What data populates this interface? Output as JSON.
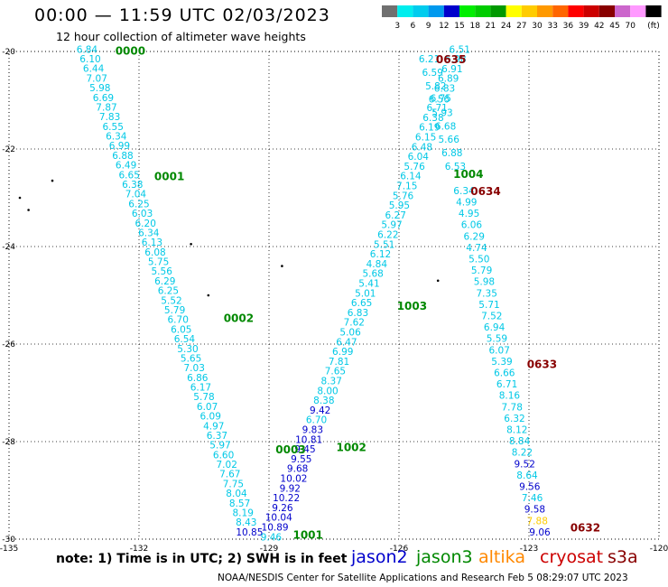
{
  "header": {
    "title": "00:00 — 11:59 UTC 02/03/2023",
    "subtitle": "12 hour collection of altimeter wave heights"
  },
  "footer": {
    "note": "note:  1) Time is in UTC;  2) SWH is in feet",
    "credit": "NOAA/NESDIS Center for Satellite Applications and Research    Feb  5 08:29:07 UTC 2023"
  },
  "legend": [
    {
      "name": "jason2",
      "color": "#0000cc"
    },
    {
      "name": "jason3",
      "color": "#008800"
    },
    {
      "name": "altika",
      "color": "#ff8800"
    },
    {
      "name": "cryosat",
      "color": "#cc0000"
    },
    {
      "name": "s3a",
      "color": "#880000"
    }
  ],
  "colorbar": {
    "colors": [
      "#707070",
      "#00eeee",
      "#00ccee",
      "#0099ee",
      "#0000cc",
      "#00ee00",
      "#00cc00",
      "#009900",
      "#ffff00",
      "#ffcc00",
      "#ff9900",
      "#ff6600",
      "#ff0000",
      "#cc0000",
      "#880000",
      "#cc66cc",
      "#ff99ff",
      "#000000"
    ],
    "labels": [
      "3",
      "6",
      "9",
      "12",
      "15",
      "18",
      "21",
      "24",
      "27",
      "30",
      "33",
      "36",
      "39",
      "42",
      "45",
      "70",
      "(ft)"
    ]
  },
  "chart_data": {
    "type": "scatter",
    "xlim": [
      -135,
      -120
    ],
    "ylim": [
      -30,
      -20
    ],
    "xticks": [
      -135,
      -132,
      -129,
      -126,
      -123,
      -120
    ],
    "yticks": [
      -20,
      -22,
      -24,
      -26,
      -28,
      -30
    ],
    "x_tick_labels": [
      "-135",
      "-132",
      "-129",
      "-126",
      "-123",
      "-120"
    ],
    "y_tick_labels": [
      "-20",
      "-22",
      "-24",
      "-26",
      "-28",
      "-30"
    ],
    "grid": true,
    "passes": [
      {
        "time": "0000",
        "label_lon": -132.2,
        "label_lat": -19.97,
        "color": "#008800"
      },
      {
        "time": "0001",
        "label_lon": -131.3,
        "label_lat": -22.55,
        "color": "#008800"
      },
      {
        "time": "0002",
        "label_lon": -129.7,
        "label_lat": -25.45,
        "color": "#008800"
      },
      {
        "time": "0003",
        "label_lon": -128.5,
        "label_lat": -28.15,
        "color": "#008800"
      },
      {
        "time": "1001",
        "label_lon": -128.1,
        "label_lat": -29.9,
        "color": "#008800"
      },
      {
        "time": "1002",
        "label_lon": -127.1,
        "label_lat": -28.1,
        "color": "#008800"
      },
      {
        "time": "1003",
        "label_lon": -125.7,
        "label_lat": -25.2,
        "color": "#008800"
      },
      {
        "time": "1004",
        "label_lon": -124.4,
        "label_lat": -22.5,
        "color": "#008800"
      },
      {
        "time": "0635",
        "label_lon": -124.8,
        "label_lat": -20.15,
        "color": "#880000"
      },
      {
        "time": "0634",
        "label_lon": -124.0,
        "label_lat": -22.85,
        "color": "#880000"
      },
      {
        "time": "0633",
        "label_lon": -122.7,
        "label_lat": -26.4,
        "color": "#880000"
      },
      {
        "time": "0632",
        "label_lon": -121.7,
        "label_lat": -29.75,
        "color": "#880000"
      }
    ],
    "tracks": [
      {
        "name": "jason3 descending",
        "lat_start": -19.95,
        "lat_end": -29.85,
        "lon_start": -133.2,
        "lon_end": -129.45,
        "values": [
          "6.84",
          "6.10",
          "6.44",
          "7.07",
          "5.98",
          "6.69",
          "7.87",
          "7.83",
          "6.55",
          "6.34",
          "6.99",
          "6.88",
          "6.49",
          "6.65",
          "6.38",
          "7.04",
          "6.25",
          "6.03",
          "6.20",
          "6.34",
          "6.13",
          "6.08",
          "5.75",
          "5.56",
          "6.29",
          "6.25",
          "5.52",
          "5.79",
          "6.70",
          "6.05",
          "6.54",
          "5.30",
          "5.65",
          "7.03",
          "6.86",
          "6.17",
          "5.78",
          "6.07",
          "6.09",
          "4.97",
          "6.37",
          "5.97",
          "6.60",
          "7.02",
          "7.67",
          "7.75",
          "8.04",
          "8.57",
          "8.19",
          "8.43",
          "10.85"
        ],
        "colors": [
          "c",
          "c",
          "c",
          "c",
          "c",
          "c",
          "c",
          "c",
          "c",
          "c",
          "c",
          "c",
          "c",
          "c",
          "c",
          "c",
          "c",
          "c",
          "c",
          "c",
          "c",
          "c",
          "c",
          "c",
          "c",
          "c",
          "c",
          "c",
          "c",
          "c",
          "c",
          "c",
          "c",
          "c",
          "c",
          "c",
          "c",
          "c",
          "c",
          "c",
          "c",
          "c",
          "c",
          "c",
          "c",
          "c",
          "c",
          "c",
          "c",
          "c",
          "b"
        ]
      },
      {
        "name": "jason3 ascending",
        "lat_start": -29.95,
        "lat_end": -19.95,
        "lon_start": -128.95,
        "lon_end": -124.6,
        "values": [
          "9.46",
          "10.89",
          "10.04",
          "9.26",
          "10.22",
          "9.92",
          "10.02",
          "9.68",
          "9.55",
          "9.45",
          "10.81",
          "9.83",
          "6.70",
          "9.42",
          "8.38",
          "8.00",
          "8.37",
          "7.65",
          "7.81",
          "6.99",
          "6.47",
          "5.06",
          "7.62",
          "6.83",
          "6.65",
          "5.01",
          "5.41",
          "5.68",
          "4.84",
          "6.12",
          "5.51",
          "6.22",
          "5.97",
          "6.27",
          "5.95",
          "5.76",
          "7.15",
          "6.14",
          "5.76",
          "6.04",
          "6.48",
          "6.15",
          "6.19",
          "6.38",
          "6.71",
          "6.75",
          "6.83",
          "6.89",
          "6.91",
          "5.98",
          "6.51"
        ],
        "colors": [
          "c",
          "b",
          "b",
          "b",
          "b",
          "b",
          "b",
          "b",
          "b",
          "b",
          "b",
          "b",
          "c",
          "b",
          "c",
          "c",
          "c",
          "c",
          "c",
          "c",
          "c",
          "c",
          "c",
          "c",
          "c",
          "c",
          "c",
          "c",
          "c",
          "c",
          "c",
          "c",
          "c",
          "c",
          "c",
          "c",
          "c",
          "c",
          "c",
          "c",
          "c",
          "c",
          "c",
          "c",
          "c",
          "c",
          "c",
          "c",
          "c",
          "c",
          "c"
        ]
      },
      {
        "name": "jason3 ascending left",
        "lat_start": -22.35,
        "lat_end": -20.15,
        "lon_start": -124.7,
        "lon_end": -125.3,
        "values": [
          "6.53",
          "6.88",
          "5.66",
          "6.68",
          "5.93",
          "6.56",
          "5.82",
          "6.59",
          "6.21"
        ],
        "colors": [
          "c",
          "c",
          "c",
          "c",
          "c",
          "c",
          "c",
          "c",
          "c"
        ]
      },
      {
        "name": "cryosat descending",
        "lat_start": -22.85,
        "lat_end": -29.85,
        "lon_start": -124.5,
        "lon_end": -122.75,
        "values": [
          "6.34",
          "4.99",
          "4.95",
          "6.06",
          "6.29",
          "4.74",
          "5.50",
          "5.79",
          "5.98",
          "7.35",
          "5.71",
          "7.52",
          "6.94",
          "5.59",
          "6.07",
          "5.39",
          "6.66",
          "6.71",
          "8.16",
          "7.78",
          "6.32",
          "8.12",
          "8.84",
          "8.22",
          "9.52",
          "8.64",
          "9.56",
          "7.46",
          "9.58",
          "7.88",
          "9.06"
        ],
        "colors": [
          "c",
          "c",
          "c",
          "c",
          "c",
          "c",
          "c",
          "c",
          "c",
          "c",
          "c",
          "c",
          "c",
          "c",
          "c",
          "c",
          "c",
          "c",
          "c",
          "c",
          "c",
          "c",
          "c",
          "c",
          "b",
          "c",
          "b",
          "c",
          "b",
          "o",
          "b"
        ]
      }
    ],
    "land_points": [
      {
        "lon": -134.0,
        "lat": -22.65
      },
      {
        "lon": -134.75,
        "lat": -23.0
      },
      {
        "lon": -134.55,
        "lat": -23.25
      },
      {
        "lon": -130.8,
        "lat": -23.95
      },
      {
        "lon": -130.4,
        "lat": -25.0
      },
      {
        "lon": -128.7,
        "lat": -24.4
      },
      {
        "lon": -125.1,
        "lat": -24.7
      }
    ],
    "track_color_key": {
      "c": "#00c8e6",
      "b": "#0000cc",
      "o": "#ffcc00"
    }
  }
}
